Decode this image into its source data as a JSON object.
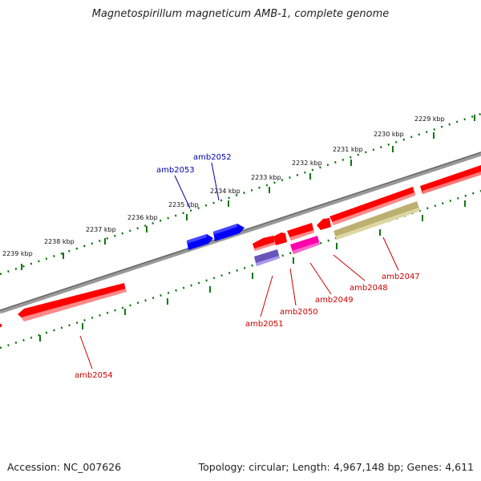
{
  "title": "Magnetospirillum magneticum AMB-1, complete genome",
  "footer": {
    "accession": "Accession: NC_007626",
    "summary": "Topology: circular; Length: 4,967,148 bp; Genes: 4,611"
  },
  "colors": {
    "forward_gene": "#ff0000",
    "reverse_gene_label": "#cc0000",
    "forward_label": "#0000aa",
    "blue_gene": "#0000ff",
    "backbone": "#888888",
    "ticks": "#117711",
    "olive_gene": "#bbb070",
    "magenta_gene": "#ff00aa",
    "purple_gene": "#7766cc"
  },
  "scale_labels": [
    "2229 kbp",
    "2230 kbp",
    "2231 kbp",
    "2232 kbp",
    "2233 kbp",
    "2234 kbp",
    "2235 kbp",
    "2236 kbp",
    "2237 kbp",
    "2238 kbp",
    "2239 kbp"
  ],
  "gene_labels_top": [
    "amb2053",
    "amb2052"
  ],
  "gene_labels_bottom": [
    "amb2054",
    "amb2051",
    "amb2050",
    "amb2049",
    "amb2048",
    "amb2047"
  ]
}
